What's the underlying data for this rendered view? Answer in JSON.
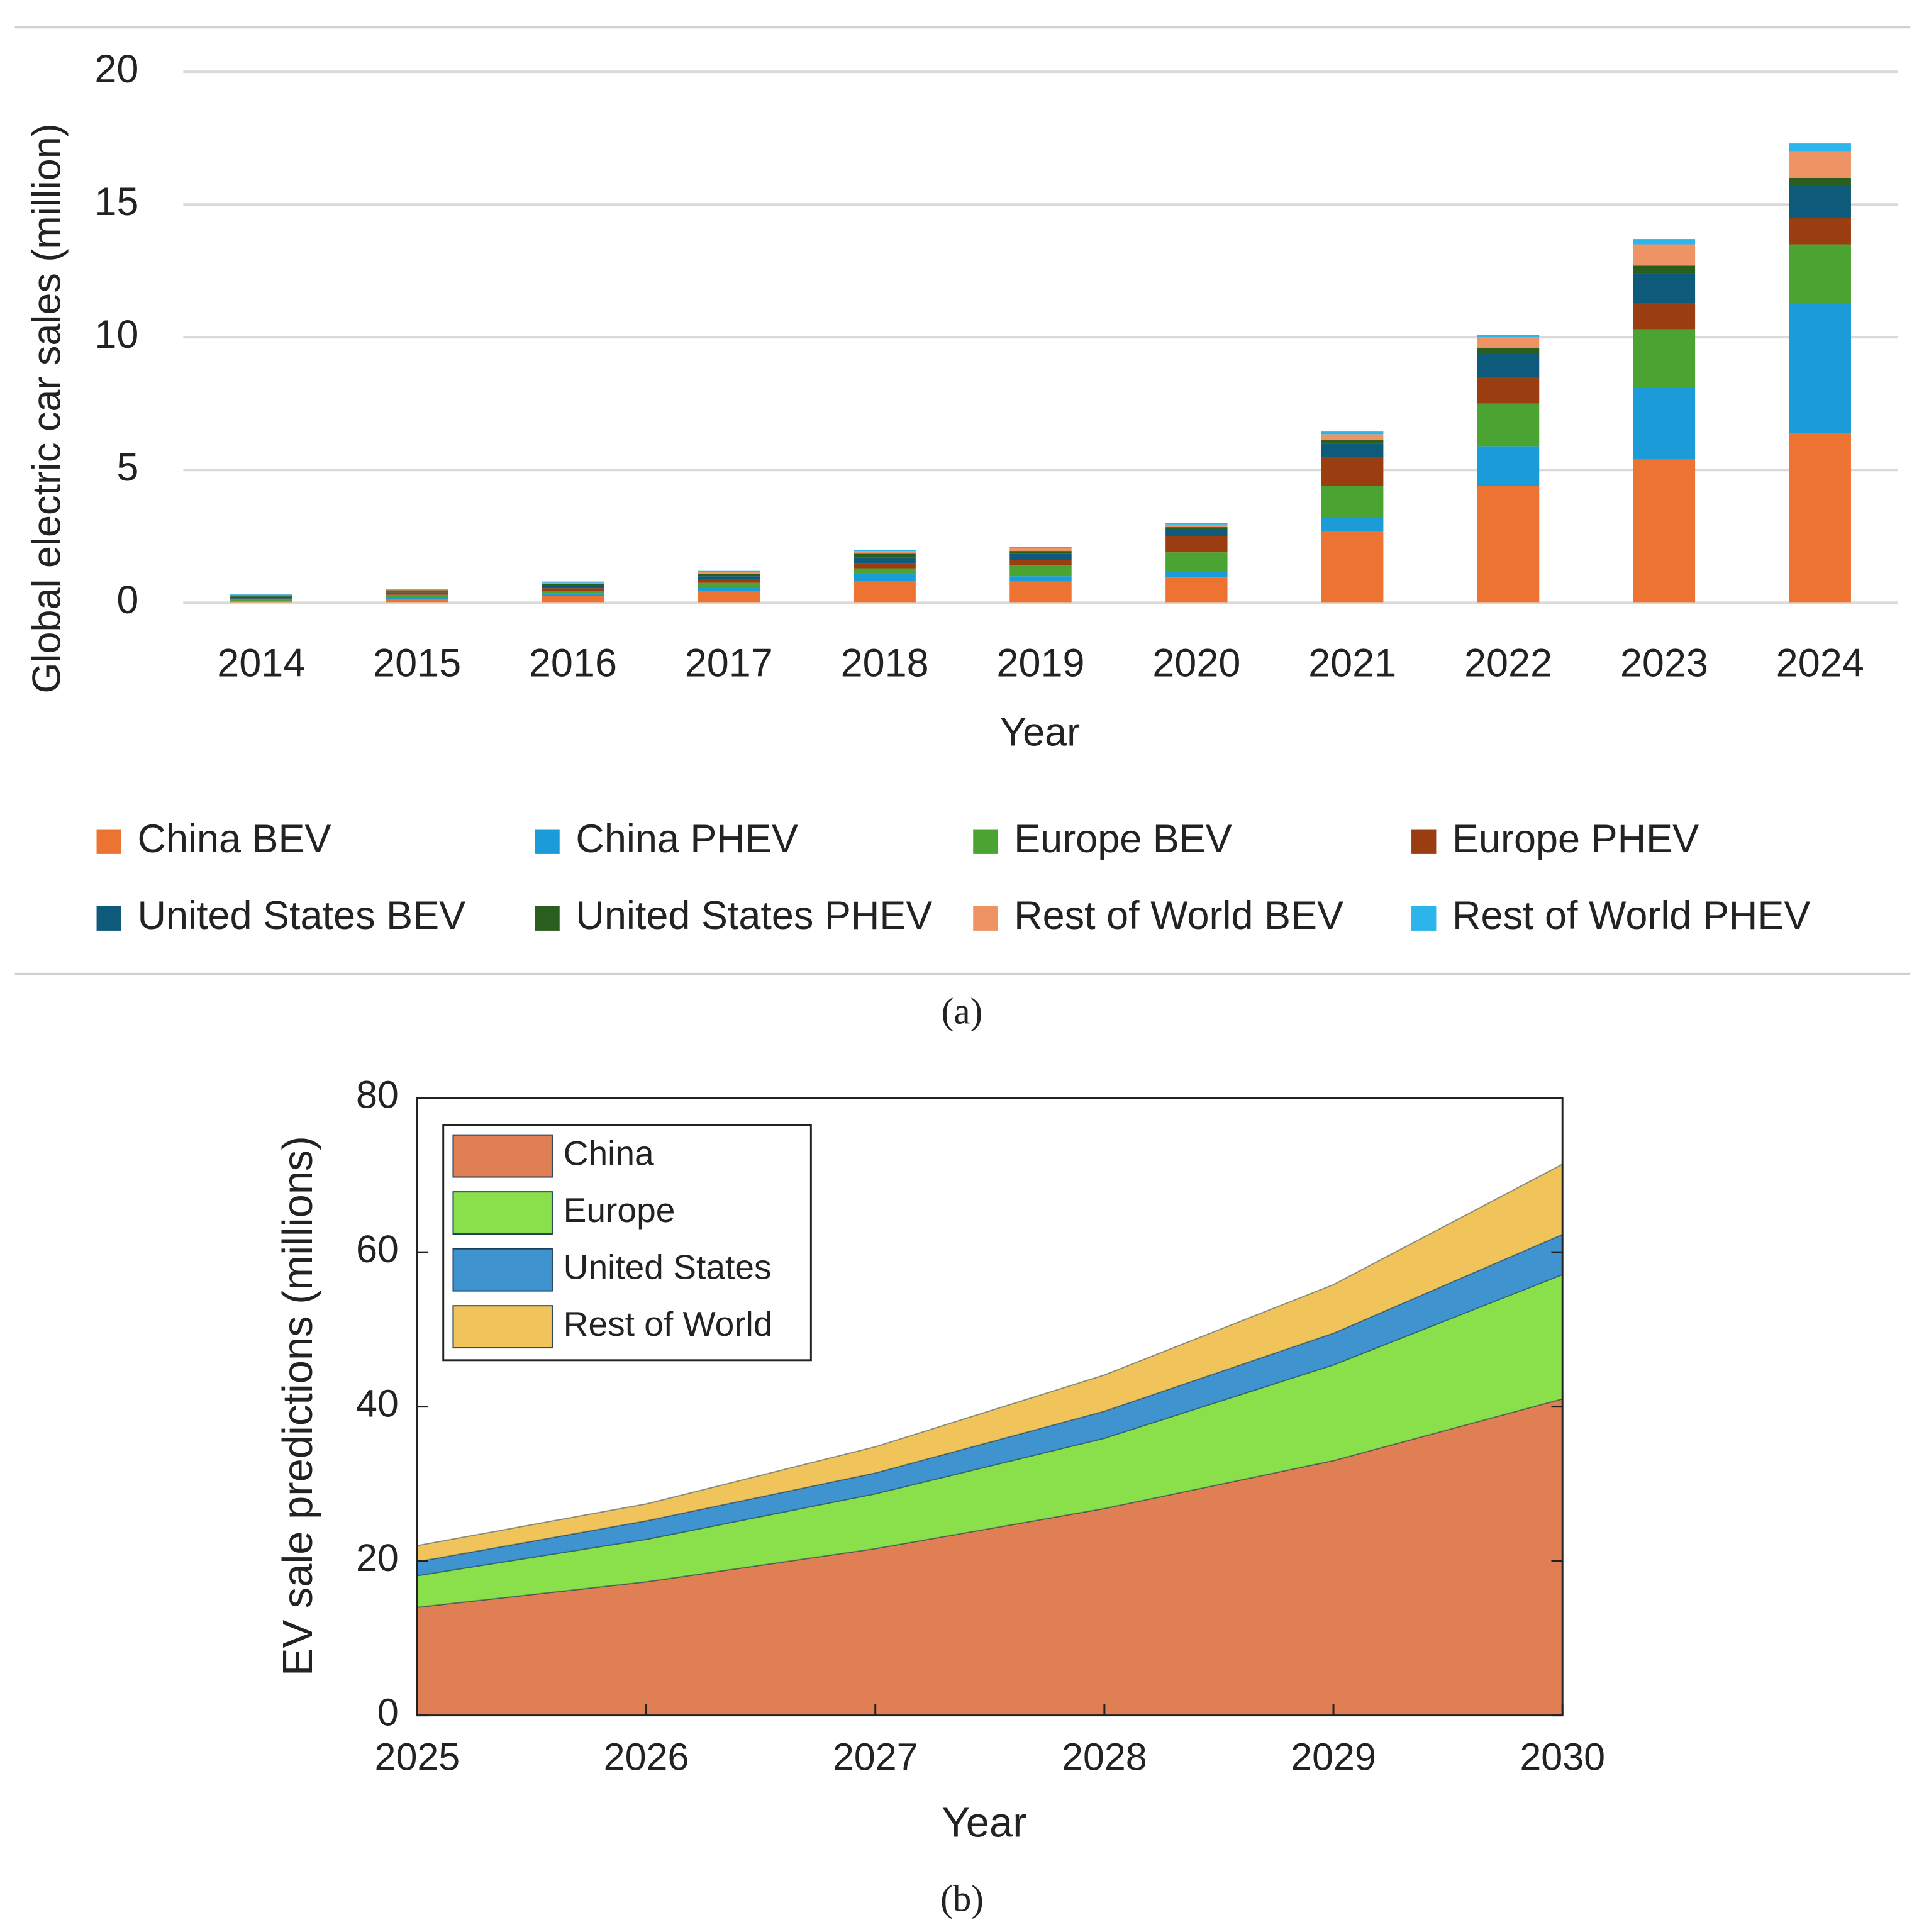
{
  "chart_data": [
    {
      "type": "bar",
      "stacked": true,
      "caption": "(a)",
      "x_label": "Year",
      "y_label": "Global electric car sales (million)",
      "categories": [
        "2014",
        "2015",
        "2016",
        "2017",
        "2018",
        "2019",
        "2020",
        "2021",
        "2022",
        "2023",
        "2024"
      ],
      "series": [
        {
          "name": "China BEV",
          "color": "#ed7332",
          "values": [
            0.05,
            0.15,
            0.25,
            0.45,
            0.8,
            0.8,
            0.95,
            2.7,
            4.4,
            5.4,
            6.4
          ]
        },
        {
          "name": "China PHEV",
          "color": "#1b9cd8",
          "values": [
            0.02,
            0.05,
            0.1,
            0.15,
            0.3,
            0.2,
            0.2,
            0.5,
            1.5,
            2.7,
            4.9
          ]
        },
        {
          "name": "Europe BEV",
          "color": "#4ba432",
          "values": [
            0.05,
            0.1,
            0.1,
            0.15,
            0.2,
            0.4,
            0.75,
            1.2,
            1.6,
            2.2,
            2.2
          ]
        },
        {
          "name": "Europe PHEV",
          "color": "#9a3e12",
          "values": [
            0.04,
            0.08,
            0.1,
            0.15,
            0.2,
            0.2,
            0.6,
            1.1,
            1.0,
            1.0,
            1.0
          ]
        },
        {
          "name": "United States BEV",
          "color": "#0e5a7a",
          "values": [
            0.07,
            0.05,
            0.08,
            0.1,
            0.2,
            0.25,
            0.25,
            0.5,
            0.9,
            1.1,
            1.2
          ]
        },
        {
          "name": "United States PHEV",
          "color": "#2a5e1e",
          "values": [
            0.05,
            0.04,
            0.07,
            0.1,
            0.15,
            0.1,
            0.1,
            0.15,
            0.2,
            0.3,
            0.3
          ]
        },
        {
          "name": "Rest of World BEV",
          "color": "#ee9464",
          "values": [
            0.02,
            0.02,
            0.05,
            0.05,
            0.1,
            0.1,
            0.1,
            0.2,
            0.4,
            0.8,
            1.0
          ]
        },
        {
          "name": "Rest of World PHEV",
          "color": "#2bb5ea",
          "values": [
            0.02,
            0.02,
            0.05,
            0.05,
            0.05,
            0.05,
            0.05,
            0.1,
            0.1,
            0.2,
            0.3
          ]
        }
      ],
      "ylim": [
        0,
        20
      ],
      "yticks": [
        0,
        5,
        10,
        15,
        20
      ],
      "grid": true,
      "legend": "bottom"
    },
    {
      "type": "area",
      "stacked": true,
      "caption": "(b)",
      "x_label": "Year",
      "y_label": "EV sale predictions (millions)",
      "x": [
        2025,
        2026,
        2027,
        2028,
        2029,
        2030
      ],
      "series": [
        {
          "name": "China",
          "color": "#e07e54",
          "values": [
            14,
            17.3,
            21.6,
            26.8,
            33,
            41
          ]
        },
        {
          "name": "Europe",
          "color": "#8ae04a",
          "values": [
            4.1,
            5.5,
            7.1,
            9.1,
            12.4,
            16.1
          ]
        },
        {
          "name": "United States",
          "color": "#3f94d0",
          "values": [
            1.8,
            2.4,
            2.7,
            3.5,
            4.1,
            5.2
          ]
        },
        {
          "name": "Rest of World",
          "color": "#f0c45a",
          "values": [
            2.1,
            2.2,
            3.4,
            4.7,
            6.3,
            9.1
          ]
        }
      ],
      "xlim": [
        2025,
        2030
      ],
      "xticks": [
        2025,
        2026,
        2027,
        2028,
        2029,
        2030
      ],
      "ylim": [
        0,
        80
      ],
      "yticks": [
        0,
        20,
        40,
        60,
        80
      ],
      "grid": false,
      "legend": "upper left"
    }
  ]
}
